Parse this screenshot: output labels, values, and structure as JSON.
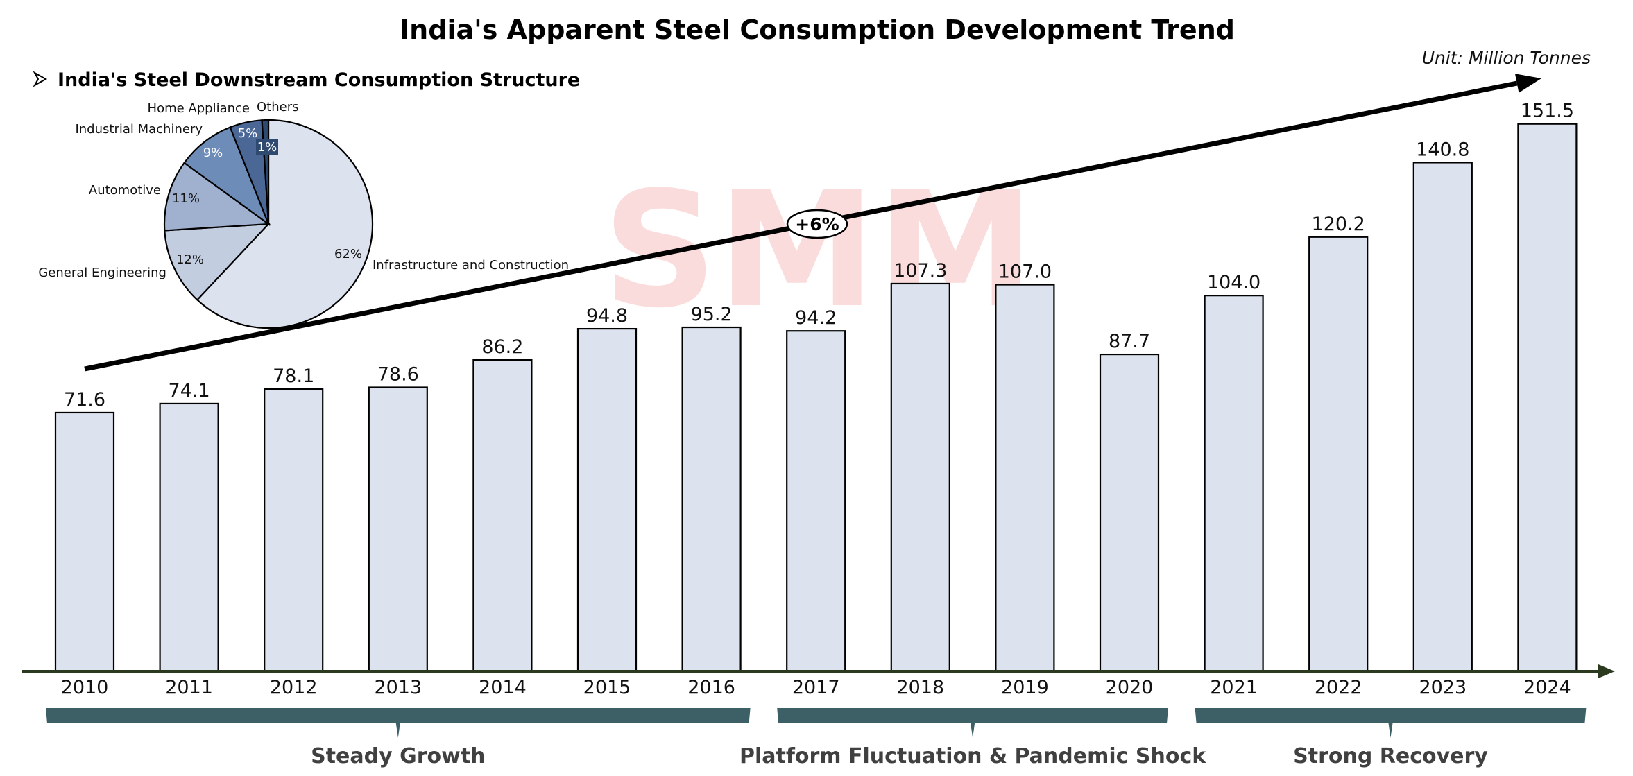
{
  "chart_data": [
    {
      "type": "bar",
      "title": "India's Apparent Steel Consumption Development Trend",
      "unit_label": "Unit:  Million Tonnes",
      "xlabel": "",
      "ylabel": "",
      "ylim": [
        0,
        160
      ],
      "grid": false,
      "categories": [
        "2010",
        "2011",
        "2012",
        "2013",
        "2014",
        "2015",
        "2016",
        "2017",
        "2018",
        "2019",
        "2020",
        "2021",
        "2022",
        "2023",
        "2024"
      ],
      "values": [
        71.6,
        74.1,
        78.1,
        78.6,
        86.2,
        94.8,
        95.2,
        94.2,
        107.3,
        107.0,
        87.7,
        104.0,
        120.2,
        140.8,
        151.5
      ],
      "value_labels": [
        "71.6",
        "74.1",
        "78.1",
        "78.6",
        "86.2",
        "94.8",
        "95.2",
        "94.2",
        "107.3",
        "107.0",
        "87.7",
        "104.0",
        "120.2",
        "140.8",
        "151.5"
      ],
      "bar_color": "#dde3ee",
      "bar_edge_color": "#000000",
      "axis_color": "#2b3a1e",
      "trend_annotation": {
        "label": "+6%",
        "from": "2010",
        "to": "2024"
      },
      "phases": [
        {
          "label": "Steady Growth",
          "from": "2010",
          "to": "2016"
        },
        {
          "label": "Platform Fluctuation & Pandemic Shock",
          "from": "2017",
          "to": "2020"
        },
        {
          "label": "Strong Recovery",
          "from": "2021",
          "to": "2024"
        }
      ],
      "phase_color": "#3d5f66"
    },
    {
      "type": "pie",
      "title": "India's Steel Downstream Consumption Structure",
      "slices": [
        {
          "name": "Infrastructure and Construction",
          "value": 62,
          "label": "62%",
          "color": "#dde3ee",
          "text_color": "#111111"
        },
        {
          "name": "General Engineering",
          "value": 12,
          "label": "12%",
          "color": "#c3cde0",
          "text_color": "#111111"
        },
        {
          "name": "Automotive",
          "value": 11,
          "label": "11%",
          "color": "#9fb1cf",
          "text_color": "#111111"
        },
        {
          "name": "Industrial Machinery",
          "value": 9,
          "label": "9%",
          "color": "#6e8cb8",
          "text_color": "#ffffff"
        },
        {
          "name": "Home Appliance",
          "value": 5,
          "label": "5%",
          "color": "#4a6796",
          "text_color": "#ffffff"
        },
        {
          "name": "Others",
          "value": 1,
          "label": "1%",
          "color": "#2f4a70",
          "text_color": "#ffffff"
        }
      ]
    }
  ],
  "header": {
    "title": "India's Apparent Steel Consumption Development Trend",
    "unit": "Unit:  Million Tonnes",
    "pie_heading": "India's Steel Downstream Consumption Structure",
    "bullet_icon": "arrowhead-bullet-icon"
  },
  "watermark": {
    "text": "SMM"
  }
}
